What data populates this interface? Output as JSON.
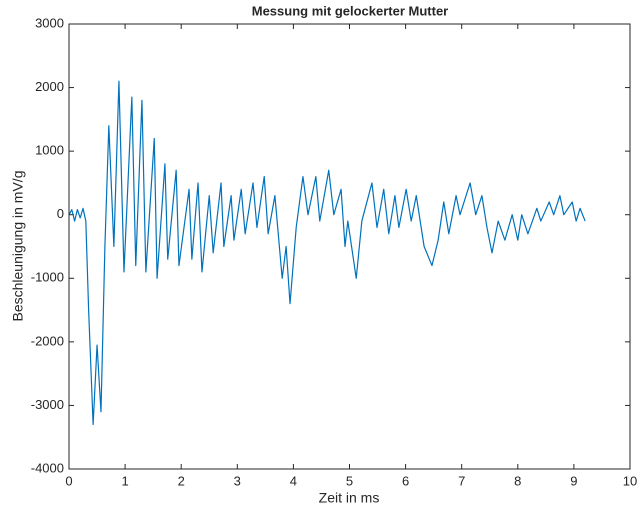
{
  "chart_data": {
    "type": "line",
    "title": "Messung mit gelockerter Mutter",
    "xlabel": "Zeit in ms",
    "ylabel": "Beschleunigung in mV/g",
    "color": "#0072bd",
    "grid": false,
    "x": [
      0,
      0.05,
      0.1,
      0.15,
      0.2,
      0.25,
      0.3,
      0.35,
      0.43,
      0.5,
      0.57,
      0.64,
      0.71,
      0.8,
      0.89,
      0.98,
      1.12,
      1.19,
      1.3,
      1.37,
      1.52,
      1.57,
      1.71,
      1.76,
      1.91,
      1.96,
      2.14,
      2.19,
      2.3,
      2.37,
      2.5,
      2.57,
      2.71,
      2.76,
      2.89,
      2.94,
      3.07,
      3.14,
      3.28,
      3.35,
      3.48,
      3.55,
      3.67,
      3.8,
      3.87,
      3.94,
      4.05,
      4.17,
      4.26,
      4.4,
      4.47,
      4.63,
      4.72,
      4.85,
      4.92,
      4.97,
      5.12,
      5.22,
      5.4,
      5.49,
      5.61,
      5.7,
      5.81,
      5.88,
      6.01,
      6.1,
      6.19,
      6.33,
      6.47,
      6.58,
      6.68,
      6.77,
      6.9,
      6.97,
      7.15,
      7.25,
      7.36,
      7.45,
      7.54,
      7.65,
      7.77,
      7.9,
      8.0,
      8.07,
      8.18,
      8.34,
      8.41,
      8.56,
      8.64,
      8.75,
      8.82,
      8.97,
      9.04,
      9.11,
      9.2
    ],
    "values": [
      0,
      80,
      -100,
      80,
      -50,
      100,
      -100,
      -1500,
      -3300,
      -2050,
      -3100,
      -500,
      1400,
      -500,
      2100,
      -900,
      1850,
      -800,
      1800,
      -900,
      1200,
      -1000,
      800,
      -700,
      700,
      -800,
      400,
      -700,
      500,
      -900,
      300,
      -600,
      500,
      -500,
      300,
      -400,
      400,
      -300,
      500,
      -200,
      600,
      -300,
      300,
      -1000,
      -500,
      -1400,
      -200,
      600,
      0,
      600,
      -100,
      700,
      0,
      400,
      -500,
      -100,
      -1000,
      -100,
      500,
      -200,
      400,
      -300,
      300,
      -200,
      400,
      -100,
      300,
      -500,
      -800,
      -400,
      200,
      -300,
      300,
      0,
      500,
      0,
      300,
      -200,
      -600,
      -100,
      -400,
      0,
      -400,
      0,
      -300,
      100,
      -100,
      200,
      0,
      300,
      0,
      200,
      -100,
      100,
      -100
    ],
    "xlim": [
      0,
      10
    ],
    "xticks": [
      0,
      1,
      2,
      3,
      4,
      5,
      6,
      7,
      8,
      9,
      10
    ],
    "ylim": [
      -4000,
      3000
    ],
    "yticks": [
      -4000,
      -3000,
      -2000,
      -1000,
      0,
      1000,
      2000,
      3000
    ]
  }
}
